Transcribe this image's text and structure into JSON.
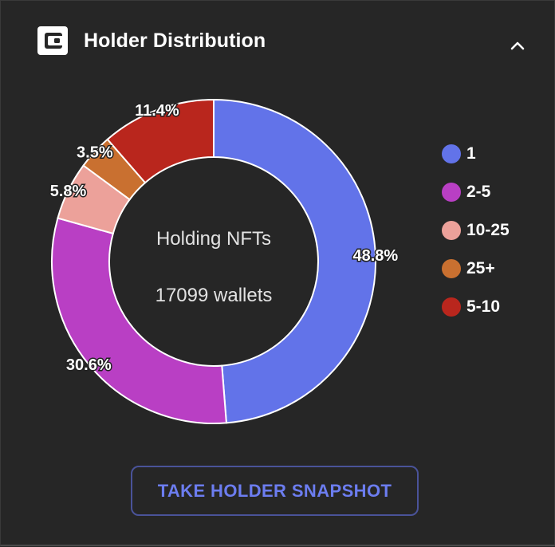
{
  "header": {
    "title": "Holder Distribution",
    "icon": "wallet-icon",
    "collapse_icon": "chevron-up-icon"
  },
  "chart_data": {
    "type": "pie",
    "donut": true,
    "center_text": [
      "Holding NFTs",
      "17099 wallets"
    ],
    "slices": [
      {
        "label": "1",
        "value": 48.8,
        "display": "48.8%",
        "color": "#6273e9"
      },
      {
        "label": "2-5",
        "value": 30.6,
        "display": "30.6%",
        "color": "#b93fc4"
      },
      {
        "label": "10-25",
        "value": 5.8,
        "display": "5.8%",
        "color": "#eca19a"
      },
      {
        "label": "25+",
        "value": 3.5,
        "display": "3.5%",
        "color": "#c97030"
      },
      {
        "label": "5-10",
        "value": 11.4,
        "display": "11.4%",
        "color": "#b9261d"
      }
    ],
    "legend_placement": "right"
  },
  "snapshot_button": {
    "label": "TAKE HOLDER SNAPSHOT"
  },
  "colors": {
    "background": "#262626",
    "accent": "#6c7df0"
  }
}
